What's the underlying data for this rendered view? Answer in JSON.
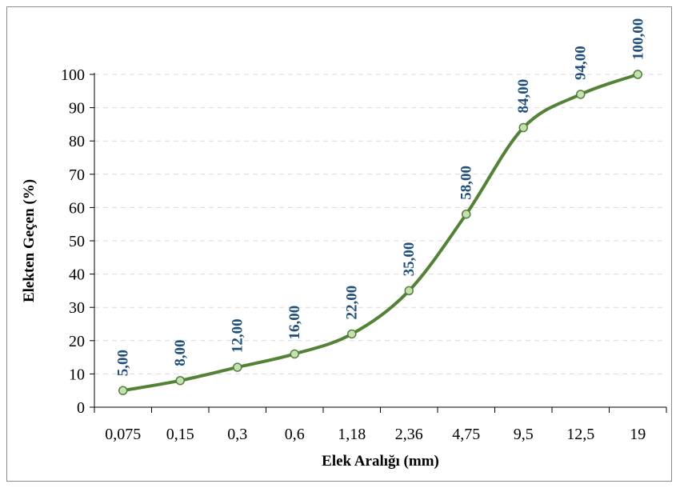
{
  "chart_data": {
    "type": "line",
    "categories": [
      "0,075",
      "0,15",
      "0,3",
      "0,6",
      "1,18",
      "2,36",
      "4,75",
      "9,5",
      "12,5",
      "19"
    ],
    "values": [
      5,
      8,
      12,
      16,
      22,
      35,
      58,
      84,
      94,
      100
    ],
    "data_labels": [
      "5,00",
      "8,00",
      "12,00",
      "16,00",
      "22,00",
      "35,00",
      "58,00",
      "84,00",
      "94,00",
      "100,00"
    ],
    "xlabel": "Elek Aralığı (mm)",
    "ylabel": "Elekten Geçen (%)",
    "ylim": [
      0,
      100
    ],
    "yticks": [
      "0",
      "10",
      "20",
      "30",
      "40",
      "50",
      "60",
      "70",
      "80",
      "90",
      "100"
    ],
    "grid": true,
    "line_color": "#538135",
    "marker_fill": "#c5e0b4",
    "label_color": "#1f4e79"
  }
}
